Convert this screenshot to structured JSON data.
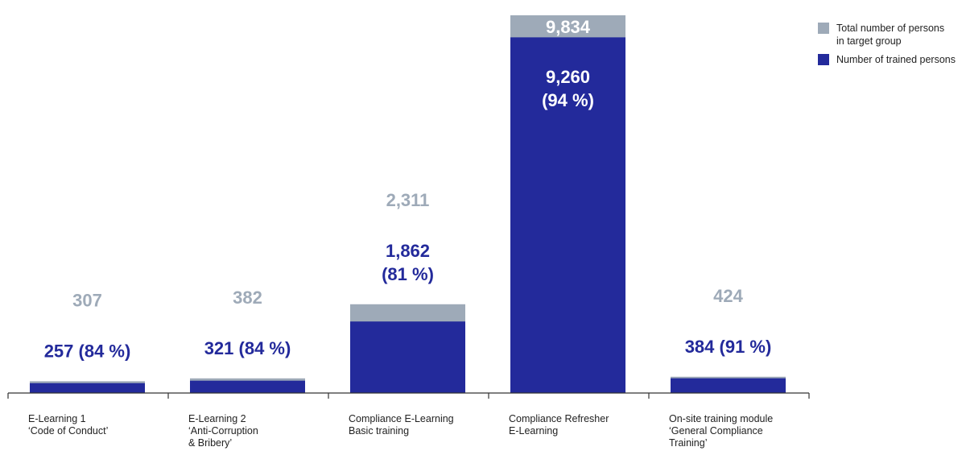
{
  "chart_data": {
    "type": "bar",
    "categories": [
      "E-Learning 1\n‘Code of Conduct’",
      "E-Learning 2\n‘Anti-Corruption\n& Bribery’",
      "Compliance E-Learning\nBasic training",
      "Compliance Refresher\nE-Learning",
      "On-site training module\n‘General Compliance\nTraining’"
    ],
    "series": [
      {
        "name": "Total number of persons in target group",
        "values": [
          307,
          382,
          2311,
          9834,
          424
        ],
        "color": "#9eaab8"
      },
      {
        "name": "Number of trained persons",
        "values": [
          257,
          321,
          1862,
          9260,
          384
        ],
        "color": "#232a9b"
      }
    ],
    "total_labels": [
      "307",
      "382",
      "2,311",
      "9,834",
      "424"
    ],
    "trained_labels": [
      "257 (84 %)",
      "321 (84 %)",
      "1,862\n(81 %)",
      "9,260\n(94 %)",
      "384 (91 %)"
    ],
    "ylim": [
      0,
      9834
    ],
    "grid": false,
    "legend": {
      "position": "top-right",
      "items": [
        {
          "label": "Total number of persons\nin target group",
          "color": "#9eaab8"
        },
        {
          "label": "Number of trained persons",
          "color": "#232a9b"
        }
      ]
    }
  }
}
